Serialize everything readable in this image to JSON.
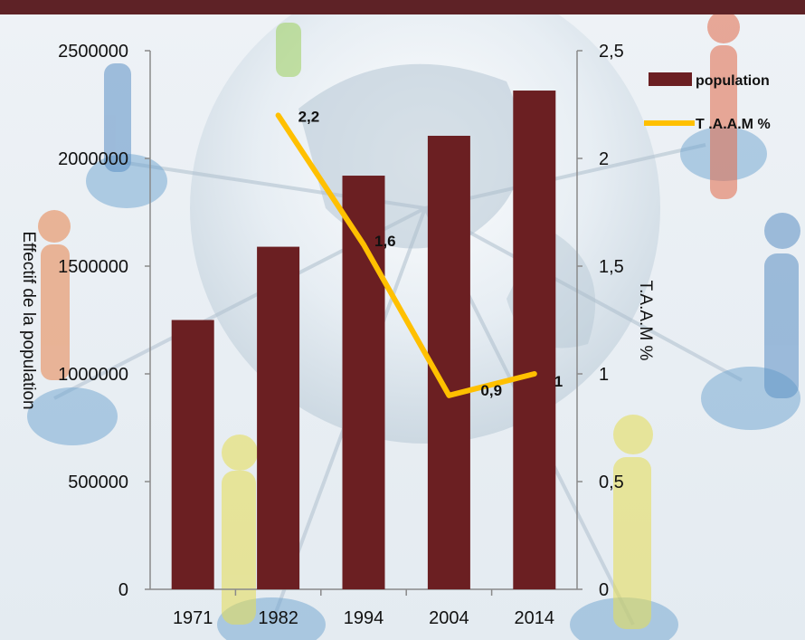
{
  "chart_data": {
    "type": "bar+line",
    "categories": [
      "1971",
      "1982",
      "1994",
      "2004",
      "2014"
    ],
    "series": [
      {
        "name": "population",
        "type": "bar",
        "axis": "left",
        "color": "#6b1f22",
        "values": [
          1250000,
          1590000,
          1920000,
          2105000,
          2315000
        ]
      },
      {
        "name": "T .A.A.M %",
        "type": "line",
        "axis": "right",
        "color": "#ffc000",
        "values": [
          null,
          2.2,
          1.6,
          0.9,
          1.0
        ],
        "labels": [
          "",
          "2,2",
          "1,6",
          "0,9",
          "1"
        ]
      }
    ],
    "ylabel": "Effectif de la population",
    "y2label": "T.A.A.M %",
    "ylim": [
      0,
      2500000
    ],
    "y2lim": [
      0,
      2.5
    ],
    "yticks": [
      "0",
      "500000",
      "1000000",
      "1500000",
      "2000000",
      "2500000"
    ],
    "y2ticks": [
      "0",
      "0,5",
      "1",
      "1,5",
      "2",
      "2,5"
    ],
    "grid": false,
    "legend": "top-right"
  },
  "colors": {
    "header_bar": "#5e2226",
    "bars": "#6b1f22",
    "line": "#ffc000"
  }
}
